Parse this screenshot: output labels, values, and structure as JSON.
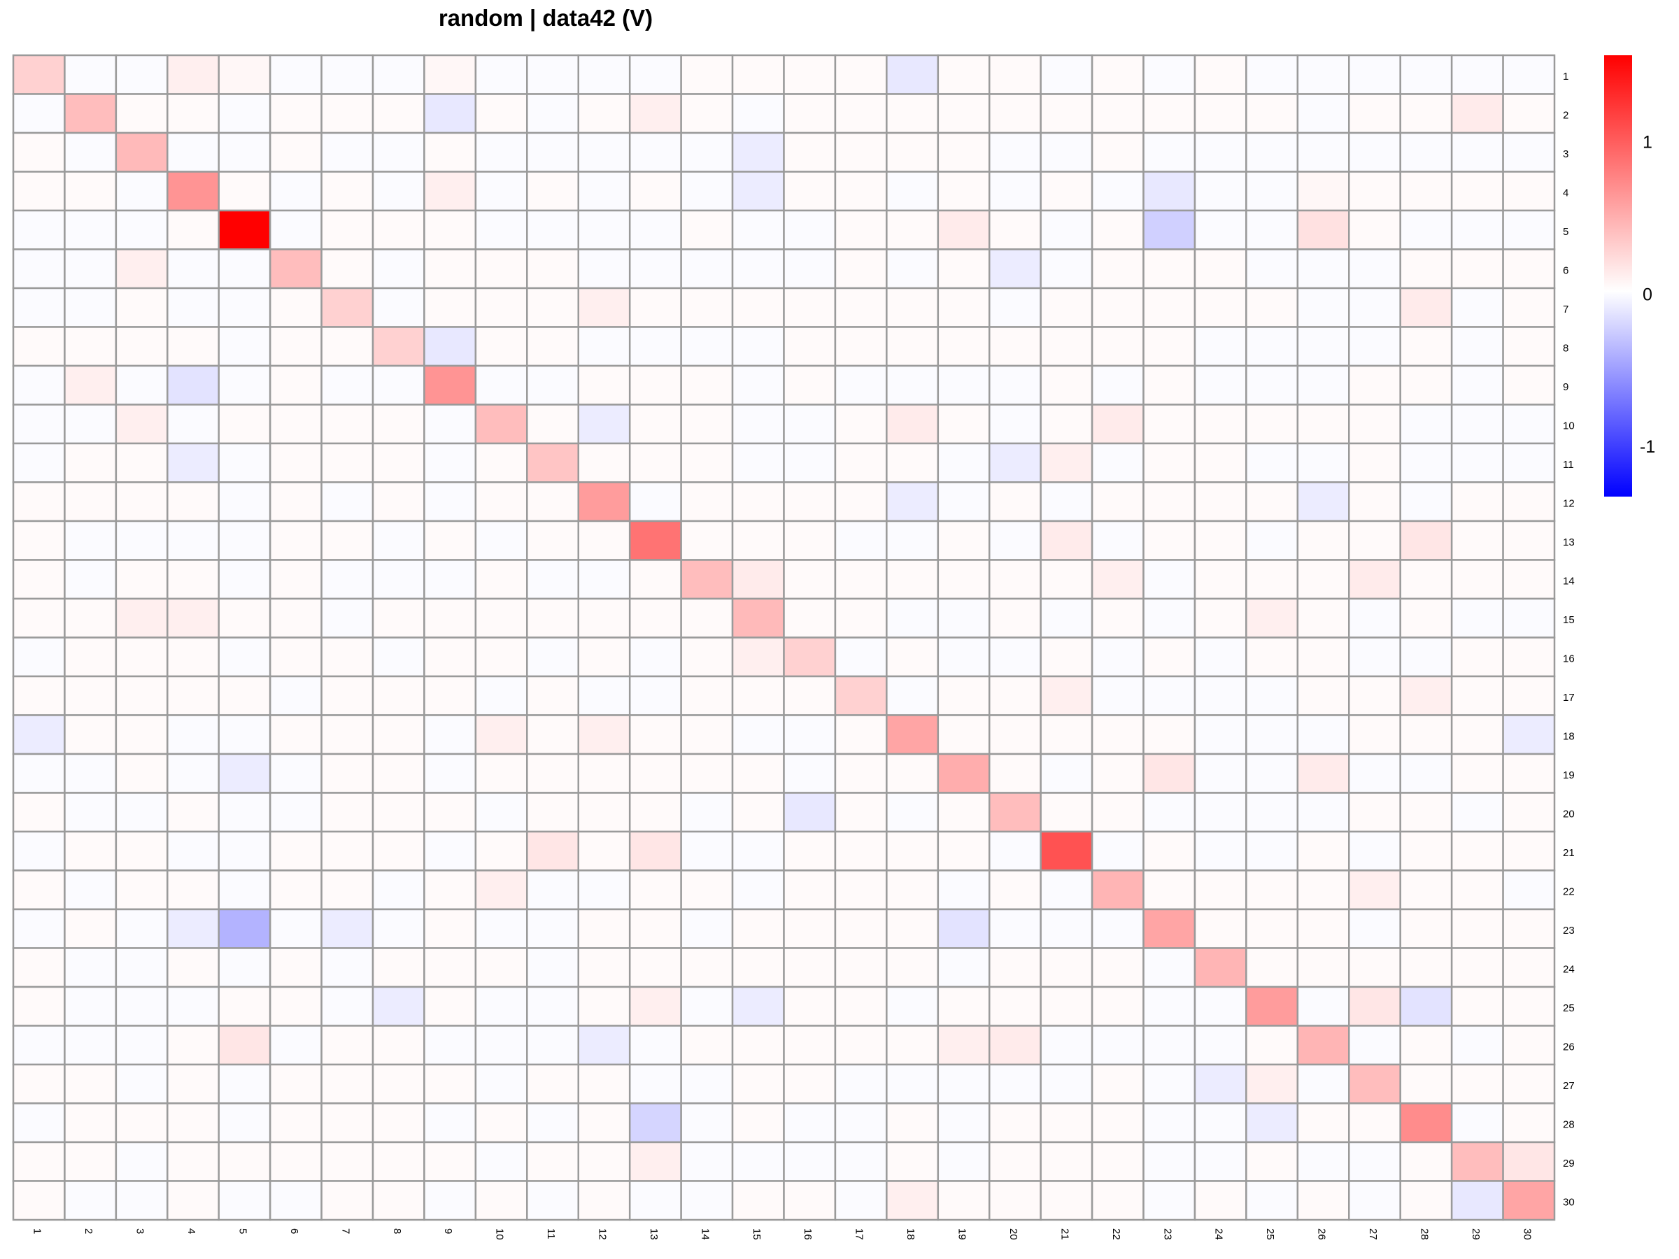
{
  "chart_data": {
    "type": "heatmap",
    "title": "random | data42 (V)",
    "row_labels": [
      "1",
      "2",
      "3",
      "4",
      "5",
      "6",
      "7",
      "8",
      "9",
      "10",
      "11",
      "12",
      "13",
      "14",
      "15",
      "16",
      "17",
      "18",
      "19",
      "20",
      "21",
      "22",
      "23",
      "24",
      "25",
      "26",
      "27",
      "28",
      "29",
      "30"
    ],
    "col_labels": [
      "1",
      "2",
      "3",
      "4",
      "5",
      "6",
      "7",
      "8",
      "9",
      "10",
      "11",
      "12",
      "13",
      "14",
      "15",
      "16",
      "17",
      "18",
      "19",
      "20",
      "21",
      "22",
      "23",
      "24",
      "25",
      "26",
      "27",
      "28",
      "29",
      "30"
    ],
    "color_scale": {
      "min": -1.35,
      "max": 1.55,
      "low_color": "#0000ff",
      "mid_color": "#ffffff",
      "high_color": "#ff0000",
      "ticks": [
        1,
        0,
        -1
      ]
    },
    "grid": true,
    "legend_position": "right",
    "values": [
      [
        0.28,
        -0.02,
        -0.02,
        0.1,
        0.05,
        -0.02,
        -0.02,
        -0.02,
        0.05,
        -0.02,
        -0.02,
        -0.02,
        -0.02,
        0.03,
        0.03,
        0.03,
        0.03,
        -0.12,
        0.03,
        0.03,
        -0.02,
        0.03,
        -0.02,
        0.03,
        -0.02,
        -0.02,
        -0.02,
        -0.02,
        -0.02,
        -0.02
      ],
      [
        -0.02,
        0.4,
        0.03,
        0.03,
        -0.02,
        0.03,
        0.03,
        0.03,
        -0.12,
        0.03,
        -0.02,
        0.03,
        0.1,
        0.03,
        -0.02,
        0.03,
        0.03,
        0.03,
        0.03,
        0.03,
        0.03,
        0.03,
        0.03,
        0.03,
        0.03,
        -0.02,
        0.03,
        0.03,
        0.12,
        0.03
      ],
      [
        0.03,
        -0.02,
        0.42,
        -0.02,
        -0.02,
        0.03,
        -0.02,
        -0.02,
        0.03,
        -0.02,
        -0.02,
        -0.02,
        -0.02,
        -0.02,
        -0.1,
        0.03,
        0.03,
        0.03,
        0.03,
        -0.02,
        -0.02,
        0.03,
        -0.02,
        -0.02,
        -0.02,
        -0.02,
        -0.02,
        -0.02,
        -0.02,
        -0.02
      ],
      [
        0.03,
        0.03,
        -0.02,
        0.65,
        0.03,
        -0.02,
        0.03,
        -0.02,
        0.1,
        -0.02,
        0.03,
        -0.02,
        0.03,
        -0.02,
        -0.1,
        0.03,
        0.03,
        -0.02,
        0.03,
        -0.02,
        0.03,
        -0.02,
        -0.12,
        -0.02,
        -0.02,
        0.05,
        0.03,
        0.03,
        0.03,
        0.03
      ],
      [
        -0.02,
        -0.02,
        -0.02,
        0.03,
        1.55,
        -0.02,
        0.03,
        0.03,
        0.03,
        -0.02,
        -0.02,
        -0.02,
        -0.02,
        0.03,
        -0.02,
        -0.02,
        0.03,
        0.03,
        0.12,
        0.03,
        -0.02,
        0.03,
        -0.25,
        -0.02,
        -0.02,
        0.18,
        0.03,
        -0.02,
        -0.02,
        -0.02
      ],
      [
        -0.02,
        -0.02,
        0.1,
        -0.02,
        -0.02,
        0.4,
        0.03,
        -0.02,
        0.03,
        0.03,
        0.03,
        -0.02,
        -0.02,
        -0.02,
        -0.02,
        -0.02,
        0.03,
        -0.02,
        0.03,
        -0.1,
        -0.02,
        0.03,
        0.03,
        0.03,
        -0.02,
        -0.02,
        -0.02,
        0.03,
        0.03,
        0.03
      ],
      [
        -0.02,
        -0.02,
        0.03,
        -0.02,
        -0.02,
        0.03,
        0.28,
        -0.02,
        0.03,
        0.03,
        0.03,
        0.1,
        0.03,
        0.03,
        0.03,
        0.03,
        0.03,
        0.03,
        0.03,
        -0.02,
        0.03,
        0.03,
        0.03,
        0.03,
        0.03,
        -0.02,
        -0.02,
        0.12,
        -0.02,
        0.03
      ],
      [
        0.03,
        0.03,
        0.03,
        0.03,
        -0.02,
        0.03,
        0.03,
        0.28,
        -0.12,
        0.03,
        0.03,
        -0.02,
        -0.02,
        -0.02,
        -0.02,
        0.03,
        0.03,
        0.03,
        0.03,
        0.03,
        0.03,
        0.03,
        0.03,
        -0.02,
        -0.02,
        -0.02,
        -0.02,
        0.03,
        -0.02,
        0.03
      ],
      [
        -0.02,
        0.1,
        -0.02,
        -0.15,
        -0.02,
        0.03,
        -0.02,
        -0.02,
        0.65,
        -0.02,
        -0.02,
        0.03,
        0.03,
        0.03,
        -0.02,
        0.03,
        -0.02,
        -0.02,
        -0.02,
        -0.02,
        0.03,
        -0.02,
        0.03,
        -0.02,
        -0.02,
        -0.02,
        0.03,
        0.03,
        -0.02,
        0.03
      ],
      [
        -0.02,
        -0.02,
        0.1,
        -0.02,
        0.03,
        0.03,
        0.03,
        0.03,
        -0.02,
        0.4,
        0.03,
        -0.1,
        0.03,
        0.03,
        -0.02,
        -0.02,
        0.03,
        0.12,
        0.03,
        -0.02,
        0.03,
        0.12,
        0.03,
        0.03,
        0.03,
        0.03,
        0.03,
        -0.02,
        -0.02,
        -0.02
      ],
      [
        -0.02,
        0.03,
        0.03,
        -0.1,
        -0.02,
        0.03,
        0.03,
        0.03,
        -0.02,
        0.03,
        0.35,
        0.03,
        0.03,
        0.03,
        -0.02,
        -0.02,
        0.03,
        0.03,
        -0.02,
        -0.1,
        0.1,
        -0.02,
        0.03,
        0.03,
        -0.02,
        -0.02,
        0.03,
        -0.02,
        -0.02,
        -0.02
      ],
      [
        0.03,
        0.03,
        0.03,
        0.03,
        -0.02,
        0.03,
        -0.02,
        0.03,
        -0.02,
        0.03,
        0.03,
        0.6,
        -0.02,
        0.03,
        0.03,
        0.03,
        0.03,
        -0.1,
        -0.02,
        0.03,
        -0.02,
        0.03,
        0.03,
        0.03,
        0.03,
        -0.1,
        0.03,
        -0.02,
        0.03,
        0.03
      ],
      [
        0.03,
        -0.02,
        -0.02,
        -0.02,
        -0.02,
        0.03,
        0.03,
        -0.02,
        0.03,
        -0.02,
        0.03,
        0.03,
        0.85,
        0.03,
        0.03,
        0.03,
        -0.02,
        -0.02,
        0.03,
        -0.02,
        0.12,
        -0.02,
        0.03,
        0.03,
        -0.02,
        0.03,
        0.03,
        0.15,
        0.03,
        0.03
      ],
      [
        0.03,
        -0.02,
        0.03,
        0.03,
        -0.02,
        0.03,
        -0.02,
        -0.02,
        -0.02,
        0.03,
        -0.02,
        -0.02,
        0.03,
        0.4,
        0.12,
        0.03,
        0.03,
        0.03,
        0.03,
        0.03,
        0.03,
        0.1,
        -0.02,
        0.03,
        0.03,
        0.03,
        0.12,
        0.03,
        0.03,
        0.03
      ],
      [
        0.03,
        0.03,
        0.1,
        0.1,
        0.03,
        0.03,
        -0.02,
        0.03,
        0.03,
        0.03,
        0.03,
        0.03,
        0.03,
        0.03,
        0.42,
        0.03,
        0.03,
        -0.02,
        -0.02,
        0.03,
        -0.02,
        0.03,
        -0.02,
        0.03,
        0.1,
        0.03,
        -0.02,
        0.03,
        -0.02,
        -0.02
      ],
      [
        -0.02,
        0.03,
        0.03,
        0.03,
        -0.02,
        0.03,
        0.03,
        -0.02,
        0.03,
        0.03,
        -0.02,
        0.03,
        -0.02,
        0.03,
        0.1,
        0.28,
        -0.02,
        0.03,
        -0.02,
        -0.02,
        0.03,
        -0.02,
        0.03,
        -0.02,
        0.03,
        0.03,
        -0.02,
        -0.02,
        0.03,
        0.03
      ],
      [
        0.03,
        0.03,
        0.03,
        0.03,
        0.03,
        -0.02,
        0.03,
        0.03,
        0.03,
        -0.02,
        0.03,
        -0.02,
        -0.02,
        0.03,
        0.03,
        0.03,
        0.28,
        -0.02,
        0.03,
        0.03,
        0.1,
        -0.02,
        -0.02,
        -0.02,
        -0.02,
        0.03,
        0.03,
        0.1,
        0.03,
        0.03
      ],
      [
        -0.1,
        0.03,
        0.03,
        -0.02,
        -0.02,
        0.03,
        0.03,
        0.03,
        -0.02,
        0.1,
        0.03,
        0.1,
        0.03,
        0.03,
        -0.02,
        -0.02,
        0.03,
        0.55,
        0.03,
        0.03,
        0.03,
        0.03,
        0.03,
        -0.02,
        -0.02,
        -0.02,
        0.03,
        0.03,
        0.03,
        -0.1
      ],
      [
        -0.02,
        -0.02,
        0.03,
        -0.02,
        -0.1,
        -0.02,
        0.03,
        0.03,
        -0.02,
        0.03,
        0.03,
        0.03,
        0.03,
        0.03,
        0.03,
        -0.02,
        0.03,
        0.03,
        0.5,
        0.03,
        -0.02,
        0.03,
        0.15,
        -0.02,
        -0.02,
        0.12,
        -0.02,
        -0.02,
        0.03,
        0.03
      ],
      [
        0.03,
        -0.02,
        -0.02,
        0.03,
        -0.02,
        -0.02,
        0.03,
        0.03,
        0.03,
        -0.02,
        0.03,
        0.03,
        0.03,
        -0.02,
        0.03,
        -0.12,
        0.03,
        -0.02,
        0.03,
        0.4,
        0.03,
        0.03,
        -0.02,
        -0.02,
        -0.02,
        -0.02,
        0.03,
        0.03,
        -0.02,
        0.03
      ],
      [
        -0.02,
        0.03,
        0.03,
        -0.02,
        -0.02,
        0.03,
        0.03,
        0.03,
        -0.02,
        0.03,
        0.15,
        0.03,
        0.15,
        -0.02,
        -0.02,
        0.03,
        0.03,
        0.03,
        0.03,
        -0.02,
        1.05,
        -0.02,
        0.03,
        -0.02,
        -0.02,
        0.03,
        -0.02,
        0.03,
        0.03,
        0.03
      ],
      [
        0.03,
        -0.02,
        0.03,
        0.03,
        -0.02,
        0.03,
        0.03,
        -0.02,
        0.03,
        0.1,
        -0.02,
        -0.02,
        0.03,
        0.03,
        -0.02,
        0.03,
        0.03,
        0.03,
        -0.02,
        0.03,
        -0.02,
        0.45,
        0.03,
        0.03,
        0.03,
        0.03,
        0.1,
        0.03,
        0.03,
        -0.02
      ],
      [
        -0.02,
        0.03,
        -0.02,
        -0.1,
        -0.4,
        -0.02,
        -0.1,
        -0.02,
        0.03,
        -0.02,
        -0.02,
        0.03,
        0.03,
        -0.02,
        0.03,
        0.03,
        0.03,
        0.03,
        -0.15,
        -0.02,
        -0.02,
        -0.02,
        0.55,
        0.03,
        0.03,
        0.03,
        -0.02,
        0.03,
        0.03,
        0.03
      ],
      [
        0.03,
        -0.02,
        -0.02,
        0.03,
        -0.02,
        0.03,
        -0.02,
        0.03,
        0.03,
        0.03,
        -0.02,
        0.03,
        0.03,
        0.03,
        0.03,
        0.03,
        0.03,
        0.03,
        -0.02,
        0.03,
        0.03,
        0.03,
        -0.02,
        0.45,
        0.03,
        0.03,
        0.03,
        0.03,
        0.03,
        0.03
      ],
      [
        0.03,
        -0.02,
        -0.02,
        -0.02,
        0.03,
        0.03,
        -0.02,
        -0.1,
        0.03,
        -0.02,
        -0.02,
        0.03,
        0.1,
        -0.02,
        -0.1,
        0.03,
        0.03,
        -0.02,
        0.03,
        0.03,
        0.03,
        0.03,
        -0.02,
        -0.02,
        0.6,
        -0.02,
        0.15,
        -0.15,
        0.03,
        0.03
      ],
      [
        -0.02,
        -0.02,
        -0.02,
        0.03,
        0.15,
        -0.02,
        0.03,
        0.03,
        -0.02,
        -0.02,
        -0.02,
        -0.1,
        -0.02,
        0.03,
        0.03,
        0.03,
        0.03,
        0.03,
        0.1,
        0.12,
        -0.02,
        -0.02,
        -0.02,
        -0.02,
        0.03,
        0.45,
        -0.02,
        0.03,
        -0.02,
        0.03
      ],
      [
        0.03,
        0.03,
        -0.02,
        0.03,
        -0.02,
        0.03,
        0.03,
        0.03,
        0.03,
        -0.02,
        0.03,
        0.03,
        -0.02,
        -0.02,
        0.03,
        0.03,
        -0.02,
        -0.02,
        -0.02,
        -0.02,
        -0.02,
        0.03,
        -0.02,
        -0.1,
        0.1,
        -0.02,
        0.4,
        0.03,
        0.03,
        0.03
      ],
      [
        -0.02,
        0.03,
        0.03,
        0.03,
        -0.02,
        0.03,
        0.03,
        0.03,
        -0.02,
        0.03,
        -0.02,
        0.03,
        -0.22,
        -0.02,
        0.03,
        -0.02,
        -0.02,
        0.03,
        -0.02,
        0.03,
        0.03,
        0.03,
        -0.02,
        -0.02,
        -0.1,
        0.03,
        0.03,
        0.7,
        -0.02,
        0.03
      ],
      [
        0.03,
        0.03,
        -0.02,
        0.03,
        0.03,
        0.03,
        0.03,
        0.03,
        0.03,
        -0.02,
        0.03,
        0.03,
        0.1,
        -0.02,
        -0.02,
        -0.02,
        -0.02,
        0.03,
        -0.02,
        0.03,
        0.03,
        0.03,
        -0.02,
        -0.02,
        0.03,
        -0.02,
        -0.02,
        0.03,
        0.4,
        0.15
      ],
      [
        0.03,
        -0.02,
        -0.02,
        0.03,
        -0.02,
        -0.02,
        0.03,
        0.03,
        -0.02,
        0.03,
        -0.02,
        0.03,
        -0.02,
        -0.02,
        0.03,
        0.03,
        -0.02,
        0.1,
        0.03,
        0.03,
        0.03,
        0.03,
        -0.02,
        0.03,
        -0.02,
        0.03,
        -0.02,
        0.03,
        -0.12,
        0.55
      ]
    ]
  }
}
